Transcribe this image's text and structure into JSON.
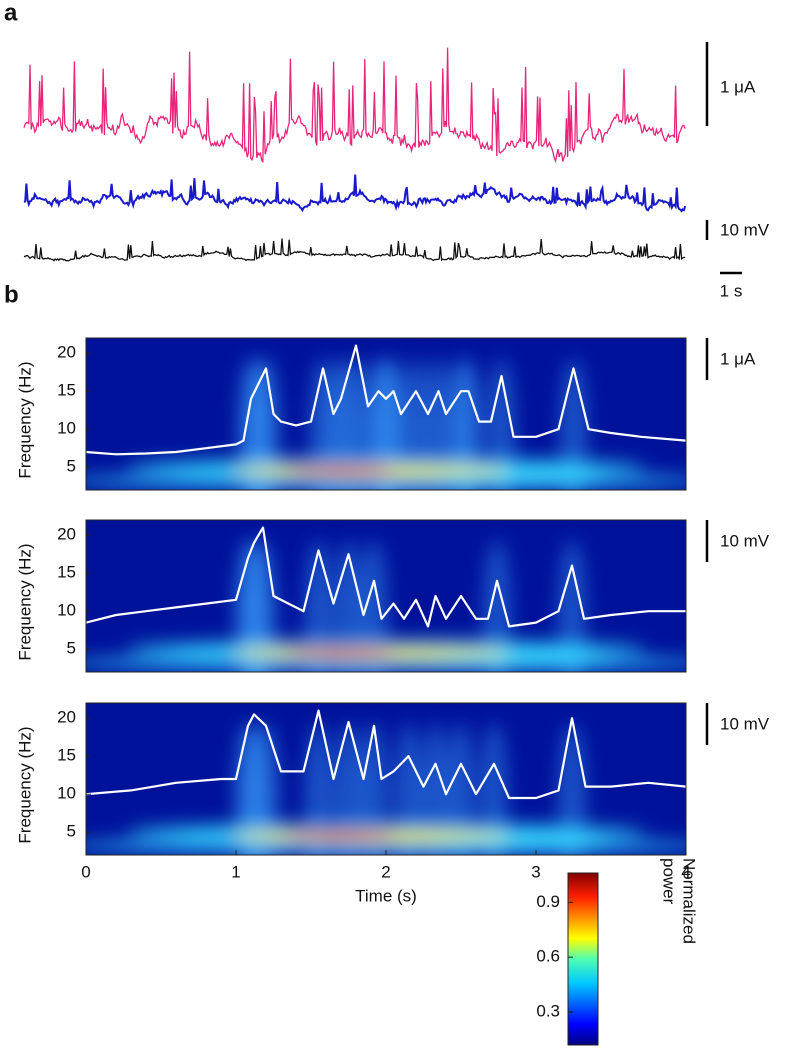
{
  "panel_labels": [
    "a",
    "b"
  ],
  "panel_a": {
    "scalebars": [
      "1 μA",
      "10 mV",
      "1 s"
    ]
  },
  "chart_data": [
    {
      "type": "spectrogram",
      "ylabel": "Frequency (Hz)",
      "scalebar": "1 μA",
      "xlim": [
        0,
        4
      ],
      "ylim": [
        2,
        22
      ],
      "yticks": [
        5,
        10,
        15,
        20
      ],
      "series": [
        {
          "color": "#ffffff",
          "x": [
            0,
            0.2,
            0.4,
            0.6,
            0.8,
            1.0,
            1.05,
            1.1,
            1.15,
            1.2,
            1.25,
            1.3,
            1.4,
            1.5,
            1.58,
            1.65,
            1.7,
            1.8,
            1.88,
            1.95,
            2.0,
            2.05,
            2.1,
            2.2,
            2.28,
            2.35,
            2.4,
            2.5,
            2.55,
            2.62,
            2.7,
            2.77,
            2.85,
            3.0,
            3.15,
            3.25,
            3.35,
            3.5,
            3.7,
            4.0
          ],
          "values": [
            7,
            6.7,
            6.8,
            7,
            7.5,
            8,
            8.5,
            14,
            16,
            18,
            12,
            11,
            10.5,
            11,
            18,
            12,
            14,
            21,
            13,
            15,
            14,
            15,
            12,
            15,
            12,
            15,
            12,
            15,
            15,
            11,
            11,
            17,
            9,
            9,
            10,
            18,
            10,
            9.5,
            9,
            8.5
          ]
        }
      ]
    },
    {
      "type": "spectrogram",
      "ylabel": "Frequency (Hz)",
      "scalebar": "10 mV",
      "xlim": [
        0,
        4
      ],
      "ylim": [
        2,
        22
      ],
      "yticks": [
        5,
        10,
        15,
        20
      ],
      "series": [
        {
          "color": "#ffffff",
          "x": [
            0,
            0.2,
            0.4,
            0.6,
            0.8,
            1.0,
            1.08,
            1.12,
            1.18,
            1.25,
            1.35,
            1.45,
            1.55,
            1.65,
            1.75,
            1.85,
            1.92,
            1.97,
            2.05,
            2.12,
            2.2,
            2.28,
            2.33,
            2.4,
            2.5,
            2.6,
            2.68,
            2.74,
            2.82,
            3.0,
            3.15,
            3.24,
            3.32,
            3.5,
            3.75,
            4.0
          ],
          "values": [
            8.5,
            9.5,
            10,
            10.5,
            11,
            11.5,
            17,
            19,
            21,
            12,
            11,
            10,
            18,
            11,
            17.5,
            9.5,
            14,
            9,
            11,
            9,
            11.5,
            8,
            12,
            9,
            12,
            9,
            9,
            14,
            8,
            8.5,
            10,
            16,
            9,
            9.5,
            10,
            10
          ]
        }
      ]
    },
    {
      "type": "spectrogram",
      "ylabel": "Frequency (Hz)",
      "xlabel": "Time (s)",
      "scalebar": "10 mV",
      "xlim": [
        0,
        4
      ],
      "ylim": [
        2,
        22
      ],
      "yticks": [
        5,
        10,
        15,
        20
      ],
      "xticks": [
        0,
        1,
        2,
        3,
        4
      ],
      "series": [
        {
          "color": "#ffffff",
          "x": [
            0,
            0.3,
            0.6,
            0.9,
            1.0,
            1.08,
            1.12,
            1.2,
            1.3,
            1.45,
            1.55,
            1.65,
            1.75,
            1.85,
            1.92,
            1.97,
            2.05,
            2.15,
            2.25,
            2.33,
            2.4,
            2.5,
            2.6,
            2.72,
            2.82,
            3.0,
            3.15,
            3.24,
            3.33,
            3.5,
            3.75,
            4.0
          ],
          "values": [
            10,
            10.5,
            11.5,
            12,
            12,
            19,
            20.5,
            19,
            13,
            13,
            21,
            12,
            19.5,
            12,
            19,
            12,
            13,
            15,
            11,
            14,
            10,
            14,
            10,
            14,
            9.5,
            9.5,
            10.5,
            20,
            11,
            11,
            11.5,
            11
          ]
        }
      ]
    }
  ],
  "colorbar": {
    "label": [
      "Normalized",
      "power"
    ],
    "lim": [
      0.12,
      1.06
    ],
    "ticks": [
      0.3,
      0.6,
      0.9
    ]
  }
}
